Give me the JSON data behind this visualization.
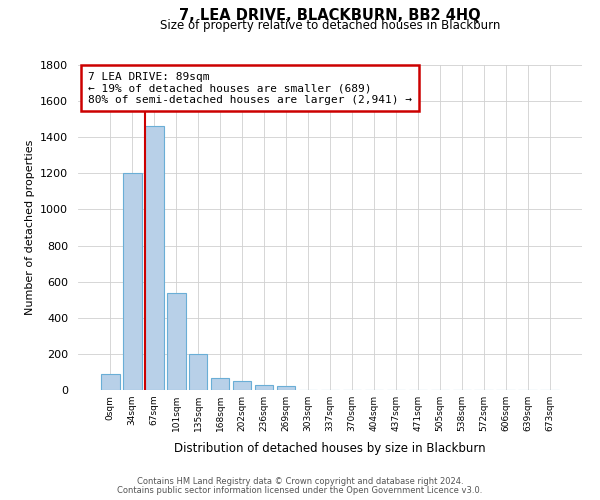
{
  "title": "7, LEA DRIVE, BLACKBURN, BB2 4HQ",
  "subtitle": "Size of property relative to detached houses in Blackburn",
  "xlabel": "Distribution of detached houses by size in Blackburn",
  "ylabel": "Number of detached properties",
  "footnote1": "Contains HM Land Registry data © Crown copyright and database right 2024.",
  "footnote2": "Contains public sector information licensed under the Open Government Licence v3.0.",
  "bar_labels": [
    "0sqm",
    "34sqm",
    "67sqm",
    "101sqm",
    "135sqm",
    "168sqm",
    "202sqm",
    "236sqm",
    "269sqm",
    "303sqm",
    "337sqm",
    "370sqm",
    "404sqm",
    "437sqm",
    "471sqm",
    "505sqm",
    "538sqm",
    "572sqm",
    "606sqm",
    "639sqm",
    "673sqm"
  ],
  "bar_values": [
    90,
    1200,
    1460,
    540,
    200,
    65,
    48,
    30,
    20,
    0,
    0,
    0,
    0,
    0,
    0,
    0,
    0,
    0,
    0,
    0,
    0
  ],
  "bar_color": "#b8d0e8",
  "bar_edgecolor": "#6aaed6",
  "ylim": [
    0,
    1800
  ],
  "yticks": [
    0,
    200,
    400,
    600,
    800,
    1000,
    1200,
    1400,
    1600,
    1800
  ],
  "vline_color": "#cc0000",
  "vline_x": 1.57,
  "annotation_title": "7 LEA DRIVE: 89sqm",
  "annotation_line1": "← 19% of detached houses are smaller (689)",
  "annotation_line2": "80% of semi-detached houses are larger (2,941) →",
  "annotation_box_color": "#cc0000",
  "background_color": "#ffffff",
  "grid_color": "#d0d0d0"
}
